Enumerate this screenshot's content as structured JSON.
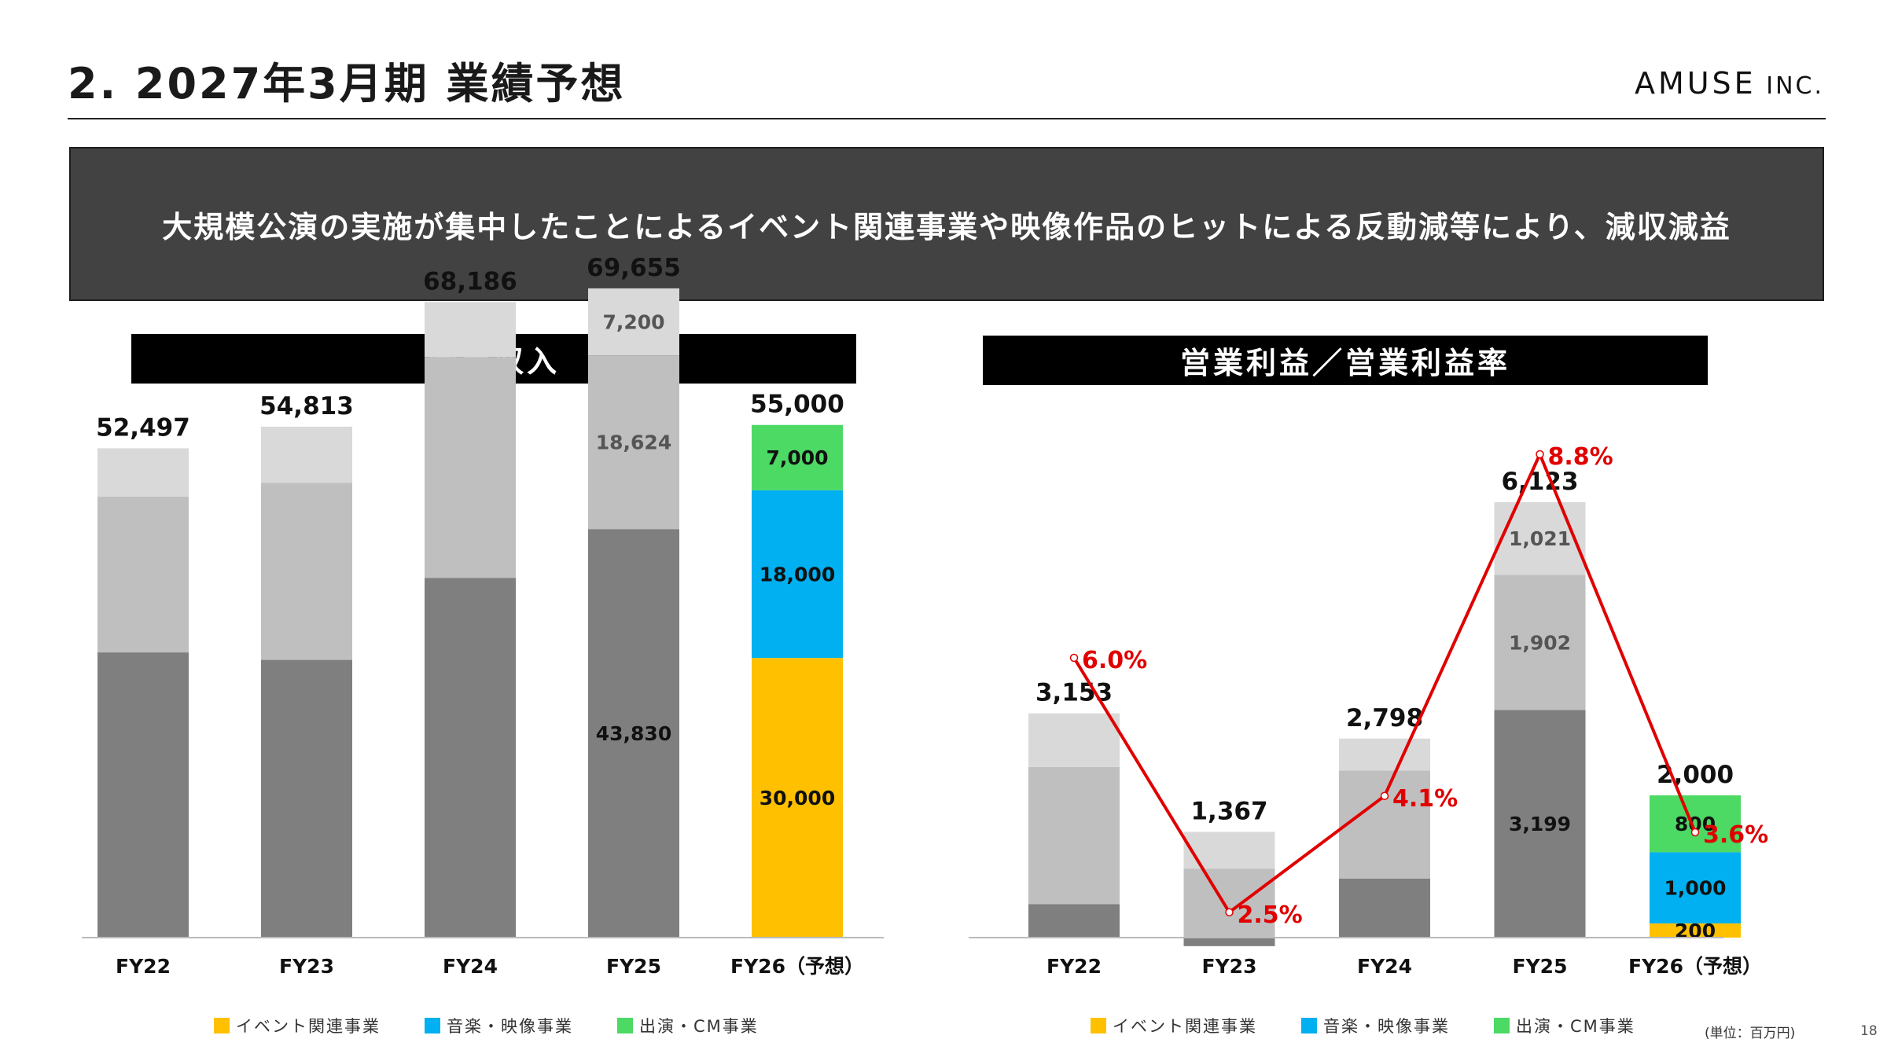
{
  "page": {
    "title": "2.  2027年3月期 業績予想",
    "logo_main": "AMUSE",
    "logo_suffix": " INC.",
    "banner": "大規模公演の実施が集中したことによるイベント関連事業や映像作品のヒットによる反動減等により、減収減益",
    "unit_note": "(単位：百万円)",
    "page_number": "18"
  },
  "legend": [
    {
      "label": "イベント関連事業",
      "color": "#FFC000"
    },
    {
      "label": "音楽・映像事業",
      "color": "#00B0F0"
    },
    {
      "label": "出演・CM事業",
      "color": "#4CD964"
    }
  ],
  "chart_data": [
    {
      "type": "bar",
      "title": "営業収入",
      "categories": [
        "FY22",
        "FY23",
        "FY24",
        "FY25",
        "FY26（予想）"
      ],
      "totals": [
        52497,
        54813,
        68186,
        69655,
        55000
      ],
      "series": [
        {
          "name": "イベント関連事業",
          "values": [
            30600,
            29800,
            38600,
            43830,
            30000
          ],
          "colors": [
            "#7F7F7F",
            "#7F7F7F",
            "#7F7F7F",
            "#7F7F7F",
            "#FFC000"
          ],
          "labels": [
            "",
            "",
            "",
            "43,830",
            "30,000"
          ]
        },
        {
          "name": "音楽・映像事業",
          "values": [
            16700,
            19000,
            23700,
            18624,
            18000
          ],
          "colors": [
            "#BFBFBF",
            "#BFBFBF",
            "#BFBFBF",
            "#BFBFBF",
            "#00B0F0"
          ],
          "labels": [
            "",
            "",
            "",
            "18,624",
            "18,000"
          ]
        },
        {
          "name": "出演・CM事業",
          "values": [
            5197,
            6013,
            5886,
            7200,
            7000
          ],
          "colors": [
            "#D9D9D9",
            "#D9D9D9",
            "#D9D9D9",
            "#D9D9D9",
            "#4CD964"
          ],
          "labels": [
            "",
            "",
            "",
            "7,200",
            "7,000"
          ]
        }
      ],
      "total_labels": [
        "52,497",
        "54,813",
        "68,186",
        "69,655",
        "55,000"
      ]
    },
    {
      "type": "bar",
      "title": "営業利益／営業利益率",
      "categories": [
        "FY22",
        "FY23",
        "FY24",
        "FY25",
        "FY26（予想）"
      ],
      "totals": [
        3153,
        1367,
        2798,
        6123,
        2000
      ],
      "series": [
        {
          "name": "イベント関連事業",
          "values": [
            470,
            -120,
            830,
            3199,
            200
          ],
          "colors": [
            "#7F7F7F",
            "#7F7F7F",
            "#7F7F7F",
            "#7F7F7F",
            "#FFC000"
          ],
          "labels": [
            "",
            "",
            "",
            "3,199",
            "200"
          ]
        },
        {
          "name": "音楽・映像事業",
          "values": [
            1930,
            967,
            1520,
            1902,
            1000
          ],
          "colors": [
            "#BFBFBF",
            "#BFBFBF",
            "#BFBFBF",
            "#BFBFBF",
            "#00B0F0"
          ],
          "labels": [
            "",
            "",
            "",
            "1,902",
            "1,000"
          ]
        },
        {
          "name": "出演・CM事業",
          "values": [
            753,
            520,
            448,
            1021,
            800
          ],
          "colors": [
            "#D9D9D9",
            "#D9D9D9",
            "#D9D9D9",
            "#D9D9D9",
            "#4CD964"
          ],
          "labels": [
            "",
            "",
            "",
            "1,021",
            "800"
          ]
        }
      ],
      "total_labels": [
        "3,153",
        "1,367",
        "2,798",
        "6,123",
        "2,000"
      ],
      "line": {
        "values": [
          6.0,
          2.5,
          4.1,
          8.8,
          3.6
        ],
        "labels": [
          "6.0%",
          "2.5%",
          "4.1%",
          "8.8%",
          "3.6%"
        ],
        "color": "#E00000"
      }
    }
  ]
}
